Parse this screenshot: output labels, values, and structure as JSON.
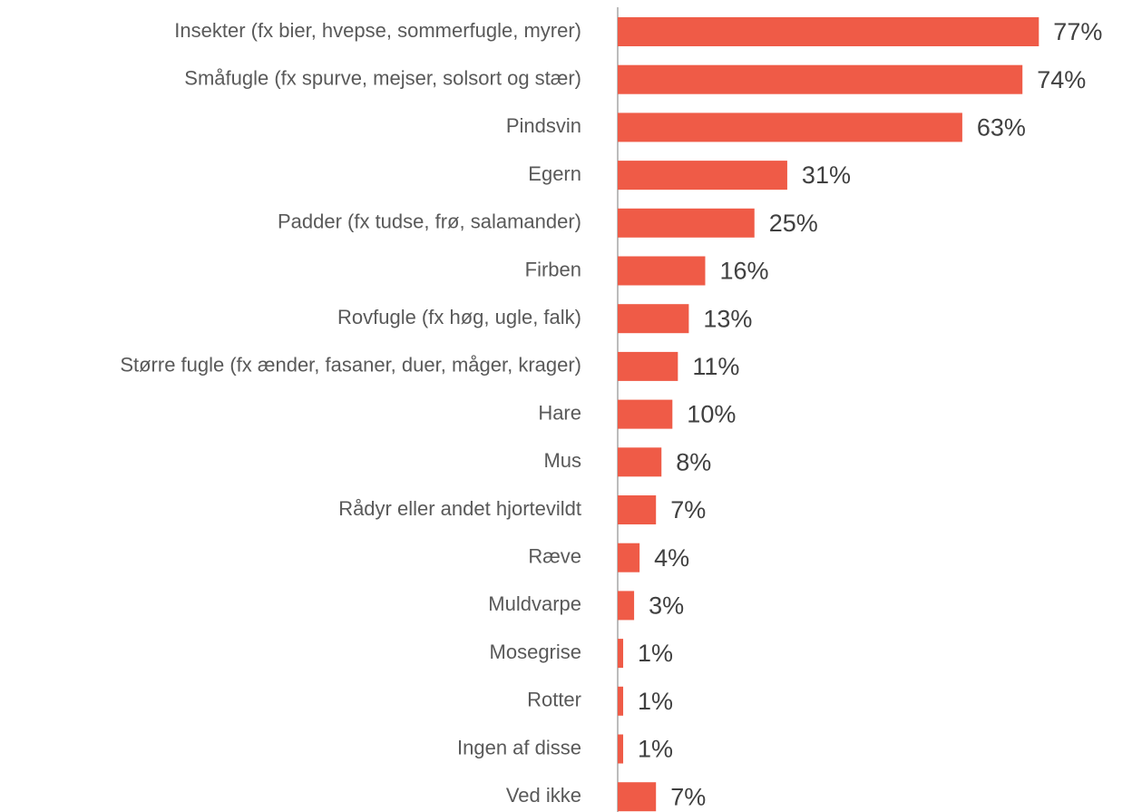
{
  "chart_data": {
    "type": "bar",
    "orientation": "horizontal",
    "color": "#ef5b47",
    "categories": [
      "Insekter (fx bier, hvepse, sommerfugle, myrer)",
      "Småfugle (fx spurve, mejser, solsort og stær)",
      "Pindsvin",
      "Egern",
      "Padder (fx tudse, frø, salamander)",
      "Firben",
      "Rovfugle (fx høg, ugle, falk)",
      "Større fugle (fx ænder, fasaner, duer, måger, krager)",
      "Hare",
      "Mus",
      "Rådyr eller andet hjortevildt",
      "Ræve",
      "Muldvarpe",
      "Mosegrise",
      "Rotter",
      "Ingen af disse",
      "Ved ikke"
    ],
    "values": [
      77,
      74,
      63,
      31,
      25,
      16,
      13,
      11,
      10,
      8,
      7,
      4,
      3,
      1,
      1,
      1,
      7
    ],
    "value_labels": [
      "77%",
      "74%",
      "63%",
      "31%",
      "25%",
      "16%",
      "13%",
      "11%",
      "10%",
      "8%",
      "7%",
      "4%",
      "3%",
      "1%",
      "1%",
      "1%",
      "7%"
    ]
  }
}
